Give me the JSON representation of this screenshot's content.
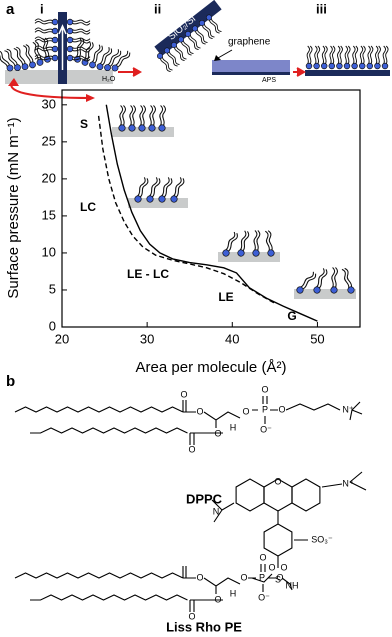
{
  "panel_labels": [
    "a",
    "b"
  ],
  "schematic": {
    "steps": [
      "i",
      "ii",
      "iii"
    ],
    "substrate_label": "SiO₂/Si",
    "graphene_label": "graphene",
    "aps_label": "APS",
    "water_label": "H₂O"
  },
  "chart_data": {
    "type": "line",
    "xlabel": "Area per molecule (Å²)",
    "ylabel": "Surface pressure (mN m⁻¹)",
    "xlim": [
      20,
      55
    ],
    "ylim": [
      0,
      32
    ],
    "xticks": [
      20,
      30,
      40,
      50
    ],
    "yticks": [
      0,
      5,
      10,
      15,
      20,
      25,
      30
    ],
    "annotations": [
      "S",
      "LC",
      "LE - LC",
      "LE",
      "G"
    ],
    "series": [
      {
        "color": "#000000",
        "dash": false,
        "x": [
          25.2,
          25.8,
          26.5,
          27.3,
          28.2,
          29.2,
          30.3,
          31.5,
          33,
          35,
          37,
          39,
          40.5,
          42,
          44,
          46,
          48,
          50
        ],
        "values": [
          30,
          26,
          22,
          18.5,
          15.5,
          13,
          11.2,
          10,
          9.2,
          8.7,
          8.4,
          8,
          7.3,
          5.3,
          3.9,
          2.8,
          1.8,
          0.8
        ]
      },
      {
        "color": "#000000",
        "dash": true,
        "x": [
          24.3,
          24.8,
          25.5,
          26.3,
          27.3,
          28.3,
          29.5,
          31,
          33,
          35,
          37,
          39,
          41,
          43,
          45
        ],
        "values": [
          28.5,
          24,
          20,
          16.8,
          14.2,
          12.3,
          10.8,
          9.7,
          9,
          8.5,
          8,
          7.2,
          6,
          4.5,
          3.2
        ]
      }
    ]
  },
  "molecules": [
    {
      "name": "DPPC",
      "atoms": [
        "O",
        "O",
        "O",
        "P",
        "O",
        "O",
        "O⁻",
        "N⁺",
        "H",
        "O",
        "O"
      ]
    },
    {
      "name": "Liss Rho PE",
      "atoms": [
        "N",
        "O",
        "N⁺",
        "SO₃⁻",
        "O",
        "S",
        "O",
        "NH",
        "O",
        "P",
        "O",
        "O",
        "O⁻",
        "O",
        "H",
        "O",
        "O"
      ]
    }
  ]
}
